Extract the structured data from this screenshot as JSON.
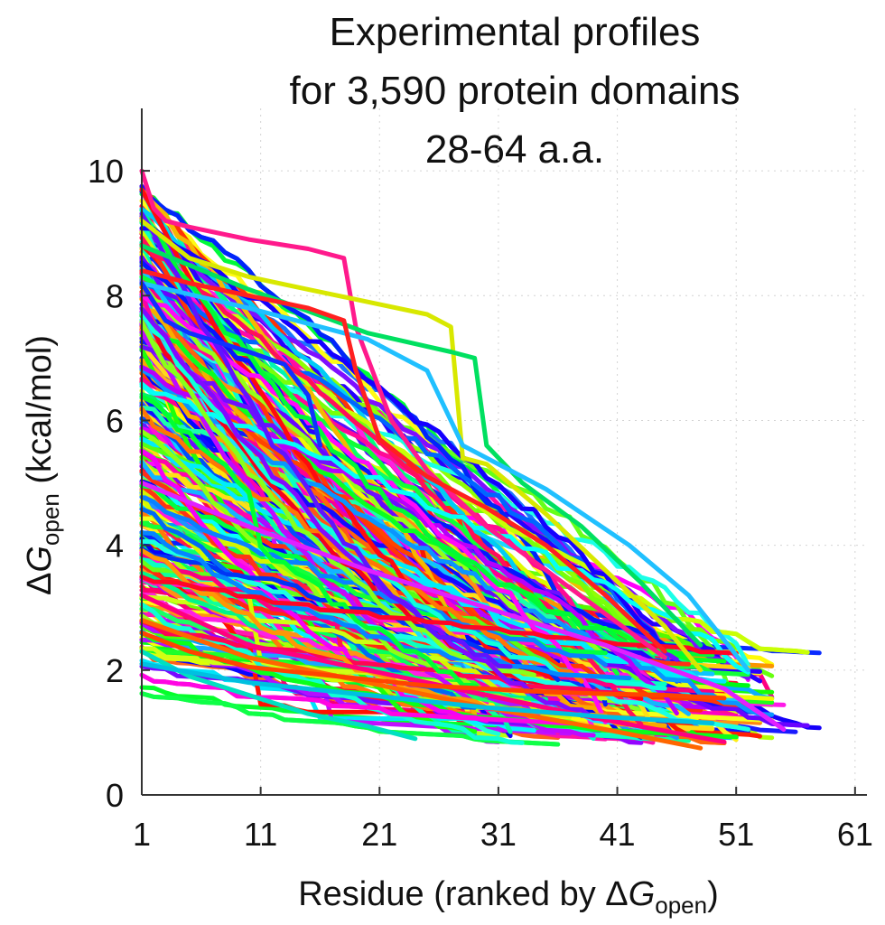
{
  "chart_data": {
    "type": "line",
    "title": [
      "Experimental profiles",
      "for 3,590 protein domains",
      "28-64 a.a."
    ],
    "xlabel": {
      "prefix": "Residue (ranked by Δ",
      "var": "G",
      "sub": "open",
      "suffix": ")"
    },
    "ylabel": {
      "prefix": "Δ",
      "var": "G",
      "sub": "open",
      "suffix": " (kcal/mol)"
    },
    "xlim": [
      1,
      62
    ],
    "ylim": [
      0,
      11
    ],
    "xticks": [
      1,
      11,
      21,
      31,
      41,
      51,
      61
    ],
    "yticks": [
      0,
      2,
      4,
      6,
      8,
      10
    ],
    "grid": true,
    "legend": "none",
    "series_count_drawn": 420,
    "highlight_series": [
      {
        "color": "#ff1a8c",
        "x": [
          1,
          2,
          3,
          5,
          10,
          15,
          18,
          19,
          20,
          22,
          25,
          30,
          35,
          40,
          45
        ],
        "y": [
          10.0,
          9.4,
          9.2,
          9.1,
          8.9,
          8.75,
          8.6,
          7.5,
          7.0,
          6.0,
          5.2,
          4.3,
          3.6,
          2.9,
          2.2
        ]
      },
      {
        "color": "#d8e800",
        "x": [
          1,
          5,
          10,
          15,
          20,
          25,
          27,
          28,
          30,
          35,
          40,
          45,
          48
        ],
        "y": [
          9.2,
          8.6,
          8.3,
          8.1,
          7.9,
          7.7,
          7.5,
          5.4,
          5.3,
          4.5,
          3.6,
          2.7,
          2.0
        ]
      },
      {
        "color": "#00e060",
        "x": [
          1,
          10,
          20,
          27,
          29,
          30,
          33,
          38,
          43,
          48
        ],
        "y": [
          8.8,
          8.1,
          7.4,
          7.1,
          7.0,
          5.6,
          5.0,
          4.3,
          3.4,
          2.4
        ]
      },
      {
        "color": "#20c0ff",
        "x": [
          1,
          10,
          20,
          25,
          28,
          35,
          42,
          47,
          52
        ],
        "y": [
          8.2,
          7.8,
          7.3,
          6.8,
          5.6,
          4.9,
          4.0,
          3.2,
          2.0
        ]
      },
      {
        "color": "#1030ff",
        "x": [
          1,
          3,
          5,
          10,
          13,
          15,
          16
        ],
        "y": [
          8.2,
          7.6,
          7.4,
          7.1,
          6.9,
          6.4,
          5.6
        ]
      },
      {
        "color": "#ff2020",
        "x": [
          1,
          5,
          10,
          15,
          18,
          19,
          21,
          25,
          30,
          35,
          40,
          45
        ],
        "y": [
          8.4,
          8.2,
          8.0,
          7.8,
          7.6,
          6.8,
          5.7,
          5.1,
          4.6,
          4.0,
          3.2,
          2.3
        ]
      },
      {
        "color": "#e020ff",
        "x": [
          1,
          10,
          20,
          30,
          40,
          50,
          55
        ],
        "y": [
          5.0,
          4.3,
          3.6,
          3.0,
          2.4,
          1.7,
          1.05
        ]
      },
      {
        "color": "#ff6600",
        "x": [
          1,
          10,
          20,
          30,
          40,
          48
        ],
        "y": [
          2.8,
          2.2,
          1.8,
          1.4,
          1.05,
          0.75
        ]
      },
      {
        "color": "#ff0080",
        "x": [
          1,
          10,
          20,
          30,
          40,
          50
        ],
        "y": [
          3.2,
          2.4,
          2.0,
          1.6,
          1.2,
          0.85
        ]
      },
      {
        "color": "#00e0c0",
        "x": [
          1,
          5,
          10,
          15,
          20,
          24
        ],
        "y": [
          2.3,
          1.9,
          1.6,
          1.3,
          1.1,
          0.9
        ]
      },
      {
        "color": "#ff4400",
        "x": [
          1,
          5,
          10,
          15,
          20,
          25,
          30,
          35,
          40,
          45,
          50
        ],
        "y": [
          2.6,
          2.3,
          2.05,
          1.95,
          1.85,
          1.75,
          1.7,
          1.65,
          1.62,
          1.6,
          1.55
        ]
      },
      {
        "color": "#00c0e0",
        "x": [
          1,
          10,
          20,
          30,
          40,
          49
        ],
        "y": [
          2.1,
          1.8,
          1.6,
          1.4,
          1.25,
          1.15
        ]
      }
    ]
  }
}
